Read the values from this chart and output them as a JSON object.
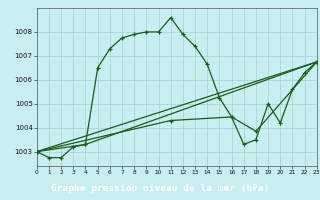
{
  "title": "Graphe pression niveau de la mer (hPa)",
  "bg_color": "#c8eef0",
  "grid_color": "#b0d4d4",
  "line_color": "#1a5c1a",
  "bottom_bar_color": "#2a6a2a",
  "title_text_color": "#ffffff",
  "xlim": [
    0,
    23
  ],
  "ylim": [
    1002.4,
    1009.0
  ],
  "yticks": [
    1003,
    1004,
    1005,
    1006,
    1007,
    1008
  ],
  "xticks": [
    0,
    1,
    2,
    3,
    4,
    5,
    6,
    7,
    8,
    9,
    10,
    11,
    12,
    13,
    14,
    15,
    16,
    17,
    18,
    19,
    20,
    21,
    22,
    23
  ],
  "series1": [
    [
      0,
      1003.0
    ],
    [
      1,
      1002.75
    ],
    [
      2,
      1002.75
    ],
    [
      3,
      1003.2
    ],
    [
      4,
      1003.3
    ],
    [
      5,
      1006.5
    ],
    [
      6,
      1007.3
    ],
    [
      7,
      1007.75
    ],
    [
      8,
      1007.9
    ],
    [
      9,
      1008.0
    ],
    [
      10,
      1008.0
    ],
    [
      11,
      1008.6
    ],
    [
      12,
      1007.9
    ],
    [
      13,
      1007.4
    ],
    [
      14,
      1006.65
    ],
    [
      15,
      1005.25
    ],
    [
      16,
      1004.45
    ],
    [
      17,
      1003.3
    ],
    [
      18,
      1003.5
    ],
    [
      19,
      1005.0
    ],
    [
      20,
      1004.2
    ],
    [
      21,
      1005.6
    ],
    [
      22,
      1006.3
    ],
    [
      23,
      1006.75
    ]
  ],
  "series2": [
    [
      0,
      1003.0
    ],
    [
      23,
      1006.75
    ]
  ],
  "series3": [
    [
      0,
      1003.0
    ],
    [
      4,
      1003.3
    ],
    [
      23,
      1006.75
    ]
  ],
  "series4": [
    [
      0,
      1003.0
    ],
    [
      11,
      1004.3
    ],
    [
      16,
      1004.45
    ],
    [
      18,
      1003.85
    ],
    [
      23,
      1006.75
    ]
  ]
}
